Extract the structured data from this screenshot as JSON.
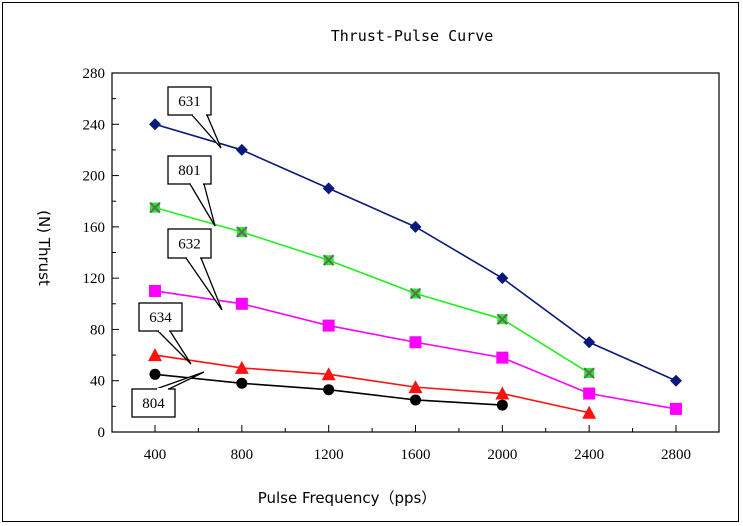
{
  "chart_data": {
    "type": "line",
    "title": "Thrust-Pulse Curve",
    "xlabel": "Pulse Frequency（pps）",
    "ylabel": "(N) Thrust",
    "x": [
      400,
      800,
      1200,
      1600,
      2000,
      2400,
      2800
    ],
    "xticks": [
      400,
      800,
      1200,
      1600,
      2000,
      2400,
      2800
    ],
    "yticks": [
      0,
      40,
      80,
      120,
      160,
      200,
      240,
      280
    ],
    "ylim": [
      0,
      280
    ],
    "grid": false,
    "series": [
      {
        "name": "631",
        "color": "#0a1a7a",
        "marker": "diamond",
        "x": [
          400,
          800,
          1200,
          1600,
          2000,
          2400,
          2800
        ],
        "values": [
          240,
          220,
          190,
          160,
          120,
          70,
          40
        ]
      },
      {
        "name": "801",
        "color": "#22ee22",
        "marker": "x-square",
        "x": [
          400,
          800,
          1200,
          1600,
          2000,
          2400
        ],
        "values": [
          175,
          156,
          134,
          108,
          88,
          46
        ]
      },
      {
        "name": "632",
        "color": "#ff00ff",
        "marker": "square",
        "x": [
          400,
          800,
          1200,
          1600,
          2000,
          2400,
          2800
        ],
        "values": [
          110,
          100,
          83,
          70,
          58,
          30,
          18
        ]
      },
      {
        "name": "634",
        "color": "#ff1111",
        "marker": "triangle",
        "x": [
          400,
          800,
          1200,
          1600,
          2000,
          2400
        ],
        "values": [
          60,
          50,
          45,
          35,
          30,
          15
        ]
      },
      {
        "name": "804",
        "color": "#000000",
        "marker": "circle",
        "x": [
          400,
          800,
          1200,
          1600,
          2000
        ],
        "values": [
          45,
          38,
          33,
          25,
          21
        ]
      }
    ]
  }
}
